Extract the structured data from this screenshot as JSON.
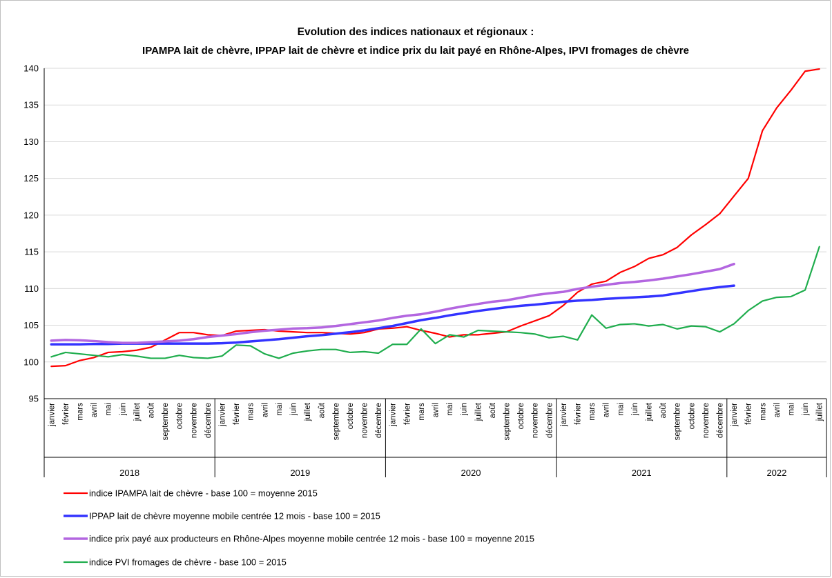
{
  "chart_data": {
    "type": "line",
    "title": "Evolution des indices nationaux et régionaux :",
    "subtitle": "IPAMPA lait de chèvre, IPPAP lait de chèvre et indice prix du lait payé en Rhône-Alpes, IPVI fromages de chèvre",
    "ylim": [
      95,
      140
    ],
    "yticks": [
      95,
      100,
      105,
      110,
      115,
      120,
      125,
      130,
      135,
      140
    ],
    "grid": true,
    "legend_position": "bottom",
    "months": [
      "janvier",
      "février",
      "mars",
      "avril",
      "mai",
      "juin",
      "juillet",
      "août",
      "septembre",
      "octobre",
      "novembre",
      "décembre"
    ],
    "year_groups": [
      {
        "year": "2018",
        "count": 12
      },
      {
        "year": "2019",
        "count": 12
      },
      {
        "year": "2020",
        "count": 12
      },
      {
        "year": "2021",
        "count": 12
      },
      {
        "year": "2022",
        "count": 7
      }
    ],
    "series": [
      {
        "name": "indice IPAMPA lait de chèvre - base 100 = moyenne 2015",
        "color": "#ff0000",
        "width": 2.2,
        "values": [
          99.4,
          99.5,
          100.2,
          100.6,
          101.3,
          101.4,
          101.6,
          102.0,
          103.0,
          104.0,
          104.0,
          103.7,
          103.6,
          104.2,
          104.3,
          104.4,
          104.2,
          104.1,
          104.0,
          104.0,
          103.9,
          103.8,
          104.0,
          104.5,
          104.6,
          104.8,
          104.3,
          103.9,
          103.4,
          103.7,
          103.7,
          103.9,
          104.1,
          104.9,
          105.6,
          106.3,
          107.7,
          109.5,
          110.6,
          111.0,
          112.2,
          113.0,
          114.1,
          114.6,
          115.6,
          117.3,
          118.7,
          120.2,
          122.6,
          125.0,
          131.5,
          134.6,
          137.0,
          139.6,
          139.9
        ]
      },
      {
        "name": "IPPAP lait de chèvre moyenne mobile centrée 12 mois - base 100 = 2015",
        "color": "#3333ff",
        "width": 3.5,
        "values": [
          102.4,
          102.4,
          102.4,
          102.45,
          102.45,
          102.5,
          102.5,
          102.5,
          102.5,
          102.5,
          102.5,
          102.5,
          102.55,
          102.65,
          102.8,
          102.95,
          103.1,
          103.3,
          103.5,
          103.65,
          103.85,
          104.05,
          104.3,
          104.6,
          104.9,
          105.3,
          105.7,
          106.0,
          106.35,
          106.65,
          106.95,
          107.2,
          107.45,
          107.65,
          107.8,
          108.0,
          108.2,
          108.35,
          108.45,
          108.6,
          108.7,
          108.8,
          108.9,
          109.05,
          109.35,
          109.65,
          109.95,
          110.2,
          110.4
        ]
      },
      {
        "name": "indice prix payé aux producteurs en Rhône-Alpes moyenne mobile centrée 12 mois - base 100 = moyenne 2015",
        "color": "#b366e0",
        "width": 3.5,
        "values": [
          102.9,
          103.0,
          102.95,
          102.85,
          102.7,
          102.6,
          102.6,
          102.7,
          102.8,
          102.9,
          103.1,
          103.4,
          103.6,
          103.8,
          104.05,
          104.25,
          104.4,
          104.55,
          104.6,
          104.7,
          104.9,
          105.15,
          105.4,
          105.65,
          106.0,
          106.3,
          106.5,
          106.85,
          107.25,
          107.6,
          107.9,
          108.2,
          108.4,
          108.75,
          109.1,
          109.35,
          109.55,
          109.95,
          110.25,
          110.5,
          110.75,
          110.9,
          111.1,
          111.35,
          111.65,
          111.95,
          112.3,
          112.65,
          113.35
        ]
      },
      {
        "name": "indice PVI fromages de chèvre - base 100 = 2015",
        "color": "#1fad4d",
        "width": 2.2,
        "values": [
          100.7,
          101.3,
          101.1,
          100.9,
          100.7,
          101.0,
          100.8,
          100.5,
          100.5,
          100.9,
          100.6,
          100.5,
          100.8,
          102.3,
          102.2,
          101.1,
          100.5,
          101.2,
          101.5,
          101.7,
          101.7,
          101.3,
          101.4,
          101.2,
          102.4,
          102.4,
          104.5,
          102.5,
          103.7,
          103.4,
          104.3,
          104.2,
          104.1,
          104.0,
          103.8,
          103.3,
          103.5,
          103.0,
          106.4,
          104.6,
          105.1,
          105.2,
          104.9,
          105.1,
          104.5,
          104.9,
          104.8,
          104.1,
          105.2,
          107.0,
          108.3,
          108.8,
          108.9,
          109.8,
          115.7
        ]
      }
    ]
  }
}
